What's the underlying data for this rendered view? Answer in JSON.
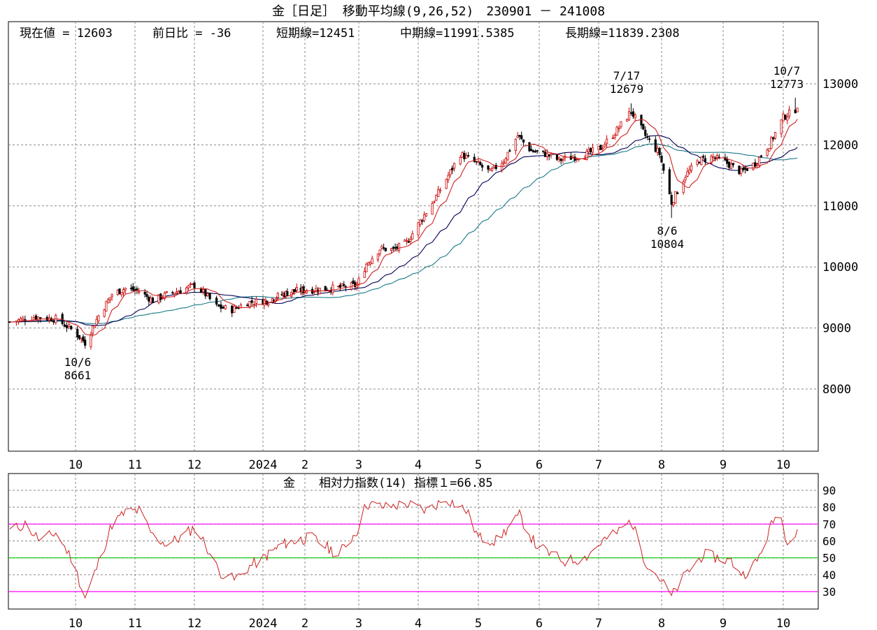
{
  "header": {
    "title": "金［日足］ 移動平均線(9,26,52)　230901 － 241008"
  },
  "info": {
    "current": "現在値 = 12603",
    "change": "前日比 = -36",
    "short": "短期線=12451",
    "mid": "中期線=11991.5385",
    "long": "長期線=11839.2308"
  },
  "rsi_panel": {
    "title": "金　　相対力指数(14) 指標１=66.85"
  },
  "colors": {
    "up_candle": "#cc0000",
    "down_candle": "#000000",
    "ma_short": "#cc2222",
    "ma_mid": "#000055",
    "ma_long": "#1a7a8a",
    "rsi_line": "#cc2222",
    "level_70_30": "#ff00ff",
    "level_50": "#00cc00",
    "grid": "#888888"
  },
  "chart_data": [
    {
      "type": "candlestick",
      "title": "金［日足］ 移動平均線(9,26,52)　230901 － 241008",
      "x_ticks": [
        "10",
        "11",
        "12",
        "2024",
        "2",
        "3",
        "4",
        "5",
        "6",
        "7",
        "8",
        "9",
        "10"
      ],
      "y_ticks": [
        "8000",
        "9000",
        "10000",
        "11000",
        "12000",
        "13000"
      ],
      "ylim": [
        7000,
        13500
      ],
      "grid": true,
      "annotations": [
        {
          "date": "10/6",
          "value": "8661"
        },
        {
          "date": "7/17",
          "value": "12679"
        },
        {
          "date": "8/6",
          "value": "10804"
        },
        {
          "date": "10/7",
          "value": "12773"
        }
      ],
      "anchors": [
        [
          "2023-09-01",
          9100
        ],
        [
          "2023-09-12",
          9180
        ],
        [
          "2023-09-22",
          9150
        ],
        [
          "2023-09-29",
          8980
        ],
        [
          "2023-10-06",
          8760
        ],
        [
          "2023-10-13",
          9200
        ],
        [
          "2023-10-20",
          9550
        ],
        [
          "2023-10-27",
          9650
        ],
        [
          "2023-11-03",
          9600
        ],
        [
          "2023-11-10",
          9450
        ],
        [
          "2023-11-17",
          9550
        ],
        [
          "2023-11-24",
          9620
        ],
        [
          "2023-12-01",
          9700
        ],
        [
          "2023-12-06",
          9550
        ],
        [
          "2023-12-11",
          9350
        ],
        [
          "2023-12-18",
          9300
        ],
        [
          "2023-12-25",
          9420
        ],
        [
          "2024-01-05",
          9450
        ],
        [
          "2024-01-12",
          9520
        ],
        [
          "2024-01-22",
          9600
        ],
        [
          "2024-02-02",
          9620
        ],
        [
          "2024-02-16",
          9650
        ],
        [
          "2024-02-29",
          9700
        ],
        [
          "2024-03-05",
          10050
        ],
        [
          "2024-03-12",
          10300
        ],
        [
          "2024-03-19",
          10280
        ],
        [
          "2024-03-26",
          10400
        ],
        [
          "2024-04-01",
          10700
        ],
        [
          "2024-04-09",
          11100
        ],
        [
          "2024-04-16",
          11500
        ],
        [
          "2024-04-22",
          11850
        ],
        [
          "2024-04-30",
          11700
        ],
        [
          "2024-05-07",
          11550
        ],
        [
          "2024-05-14",
          11750
        ],
        [
          "2024-05-21",
          12150
        ],
        [
          "2024-05-28",
          11900
        ],
        [
          "2024-06-04",
          11850
        ],
        [
          "2024-06-11",
          11750
        ],
        [
          "2024-06-18",
          11800
        ],
        [
          "2024-06-25",
          11850
        ],
        [
          "2024-07-02",
          11950
        ],
        [
          "2024-07-09",
          12200
        ],
        [
          "2024-07-17",
          12550
        ],
        [
          "2024-07-24",
          12150
        ],
        [
          "2024-07-31",
          11850
        ],
        [
          "2024-08-06",
          11050
        ],
        [
          "2024-08-13",
          11500
        ],
        [
          "2024-08-20",
          11750
        ],
        [
          "2024-08-27",
          11800
        ],
        [
          "2024-09-03",
          11700
        ],
        [
          "2024-09-10",
          11550
        ],
        [
          "2024-09-17",
          11700
        ],
        [
          "2024-09-24",
          12000
        ],
        [
          "2024-10-01",
          12450
        ],
        [
          "2024-10-08",
          12603
        ]
      ],
      "extremes": [
        {
          "date": "2023-10-06",
          "low": 8661
        },
        {
          "date": "2024-07-17",
          "high": 12679
        },
        {
          "date": "2024-08-06",
          "low": 10804
        },
        {
          "date": "2024-10-07",
          "high": 12773
        }
      ],
      "moving_averages": [
        {
          "name": "短期線",
          "period": 9,
          "last": 12451
        },
        {
          "name": "中期線",
          "period": 26,
          "last": 11991.5385
        },
        {
          "name": "長期線",
          "period": 52,
          "last": 11839.2308
        }
      ]
    },
    {
      "type": "line",
      "title": "金　　相対力指数(14) 指標１=66.85",
      "x_ticks": [
        "10",
        "11",
        "12",
        "2024",
        "2",
        "3",
        "4",
        "5",
        "6",
        "7",
        "8",
        "9",
        "10"
      ],
      "y_ticks": [
        "30",
        "40",
        "50",
        "60",
        "70",
        "80",
        "90"
      ],
      "ylim": [
        20,
        95
      ],
      "levels": [
        30,
        50,
        70
      ],
      "last": 66.85,
      "series": [
        {
          "values": [
            [
              "2023-09-01",
              66
            ],
            [
              "2023-09-08",
              70
            ],
            [
              "2023-09-15",
              60
            ],
            [
              "2023-09-22",
              65
            ],
            [
              "2023-09-29",
              50
            ],
            [
              "2023-10-06",
              26
            ],
            [
              "2023-10-13",
              47
            ],
            [
              "2023-10-20",
              70
            ],
            [
              "2023-10-27",
              77
            ],
            [
              "2023-11-03",
              78
            ],
            [
              "2023-11-10",
              63
            ],
            [
              "2023-11-17",
              58
            ],
            [
              "2023-11-24",
              62
            ],
            [
              "2023-12-01",
              68
            ],
            [
              "2023-12-06",
              58
            ],
            [
              "2023-12-12",
              42
            ],
            [
              "2023-12-19",
              37
            ],
            [
              "2023-12-26",
              45
            ],
            [
              "2024-01-05",
              52
            ],
            [
              "2024-01-15",
              58
            ],
            [
              "2024-01-25",
              60
            ],
            [
              "2024-02-05",
              62
            ],
            [
              "2024-02-19",
              52
            ],
            [
              "2024-02-29",
              66
            ],
            [
              "2024-03-05",
              82
            ],
            [
              "2024-03-15",
              80
            ],
            [
              "2024-03-26",
              82
            ],
            [
              "2024-04-05",
              78
            ],
            [
              "2024-04-15",
              85
            ],
            [
              "2024-04-25",
              78
            ],
            [
              "2024-05-01",
              62
            ],
            [
              "2024-05-10",
              60
            ],
            [
              "2024-05-22",
              75
            ],
            [
              "2024-05-30",
              58
            ],
            [
              "2024-06-07",
              52
            ],
            [
              "2024-06-14",
              48
            ],
            [
              "2024-06-24",
              50
            ],
            [
              "2024-07-03",
              60
            ],
            [
              "2024-07-10",
              65
            ],
            [
              "2024-07-17",
              72
            ],
            [
              "2024-07-24",
              48
            ],
            [
              "2024-07-31",
              38
            ],
            [
              "2024-08-06",
              27
            ],
            [
              "2024-08-13",
              40
            ],
            [
              "2024-08-22",
              52
            ],
            [
              "2024-08-29",
              50
            ],
            [
              "2024-09-05",
              48
            ],
            [
              "2024-09-11",
              40
            ],
            [
              "2024-09-18",
              48
            ],
            [
              "2024-09-26",
              72
            ],
            [
              "2024-09-30",
              77
            ],
            [
              "2024-10-02",
              60
            ],
            [
              "2024-10-08",
              66.85
            ]
          ]
        }
      ]
    }
  ]
}
